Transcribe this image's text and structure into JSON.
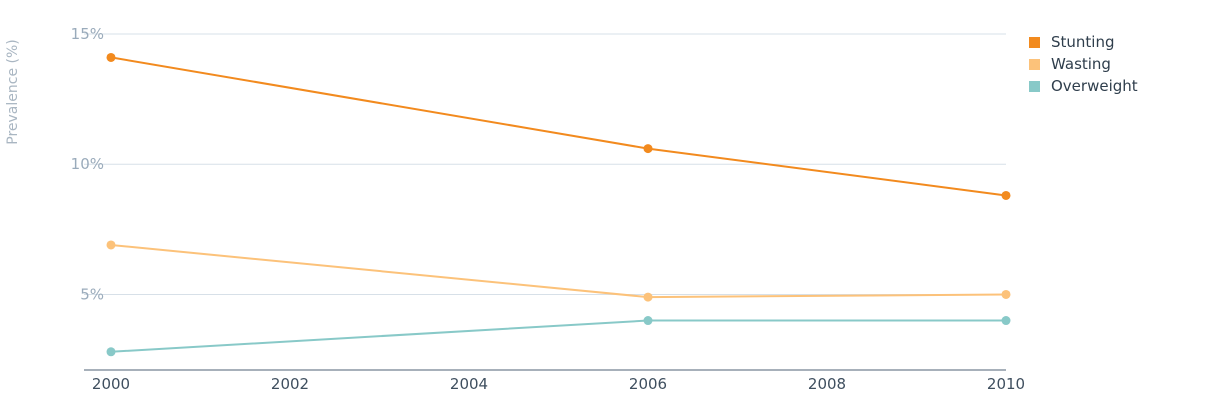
{
  "chart_data": {
    "type": "line",
    "ylabel": "Prevalence (%)",
    "xlabel": "",
    "x": [
      2000,
      2006,
      2010
    ],
    "xticks": [
      "2000",
      "2002",
      "2004",
      "2006",
      "2008",
      "2010"
    ],
    "xlim": [
      2000,
      2010
    ],
    "yticks": [
      "5%",
      "10%",
      "15%"
    ],
    "ylim": [
      2.1,
      15
    ],
    "grid": "horizontal",
    "legend_position": "right",
    "series": [
      {
        "name": "Stunting",
        "values": [
          14.1,
          10.6,
          8.8
        ],
        "color": "#f28a1e"
      },
      {
        "name": "Wasting",
        "values": [
          6.9,
          4.9,
          5.0
        ],
        "color": "#fcc27a"
      },
      {
        "name": "Overweight",
        "values": [
          2.8,
          4.0,
          4.0
        ],
        "color": "#88c9c8"
      }
    ]
  }
}
